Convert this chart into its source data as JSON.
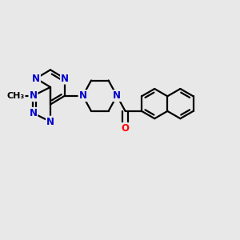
{
  "bg_color": "#e8e8e8",
  "n_color": "#0000cc",
  "o_color": "#ff0000",
  "c_color": "#000000",
  "lw": 1.6,
  "dbo": 0.12,
  "fs": 8.5,
  "fig_w": 3.0,
  "fig_h": 3.0,
  "dpi": 100,
  "xlim": [
    0,
    10
  ],
  "ylim": [
    0,
    10
  ]
}
